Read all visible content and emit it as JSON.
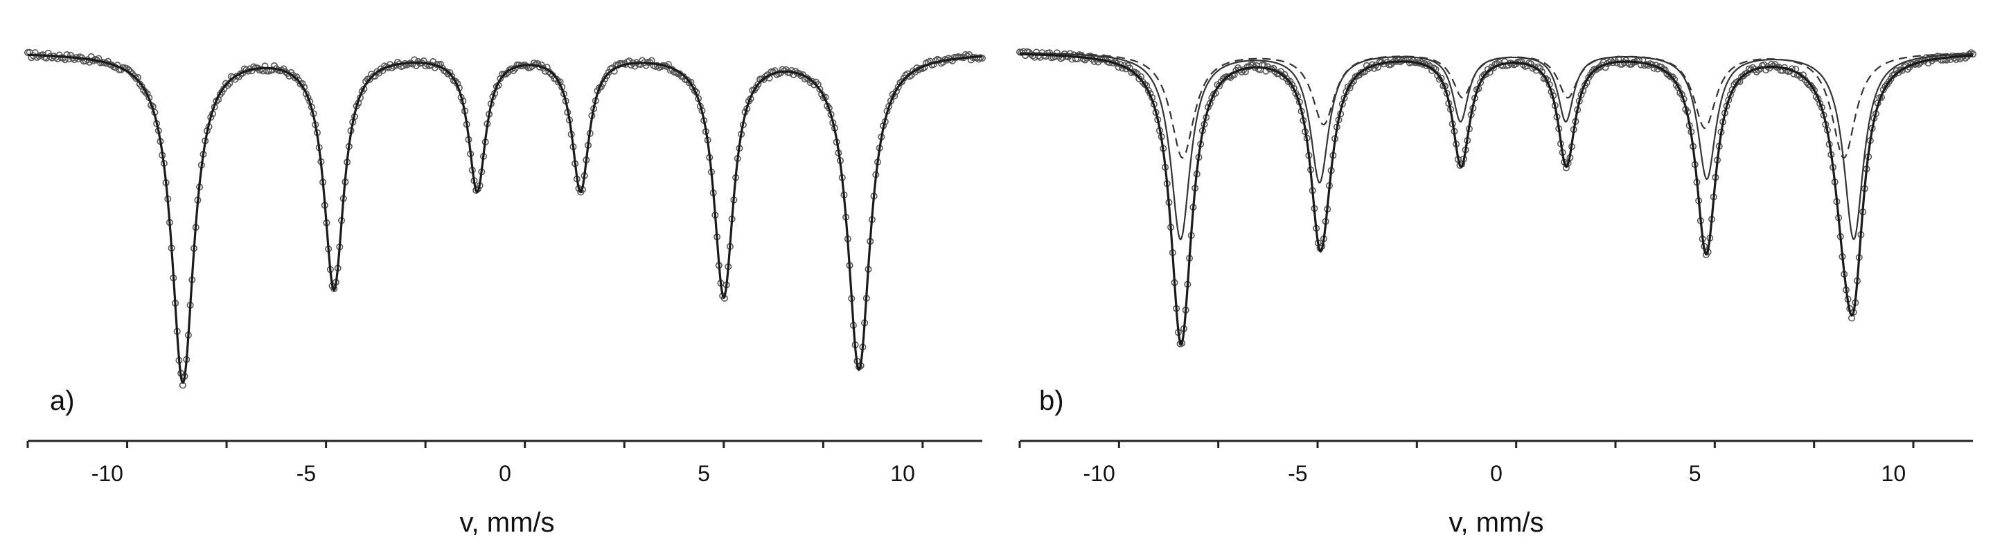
{
  "chart_data": [
    {
      "type": "line",
      "panel_label": "a)",
      "xlabel": "v, mm/s",
      "ylabel": "",
      "xlim": [
        -12,
        12
      ],
      "xticks": [
        -10,
        -5,
        0,
        5,
        10
      ],
      "grid": false,
      "baseline": 1.0,
      "ylim": [
        0.0,
        1.02
      ],
      "series": [
        {
          "style": "solid-thick",
          "lines": [
            {
              "position": -8.1,
              "depth": 0.97,
              "width": 0.34
            },
            {
              "position": -4.3,
              "depth": 0.69,
              "width": 0.3
            },
            {
              "position": -0.7,
              "depth": 0.4,
              "width": 0.26
            },
            {
              "position": 1.9,
              "depth": 0.4,
              "width": 0.26
            },
            {
              "position": 5.5,
              "depth": 0.71,
              "width": 0.3
            },
            {
              "position": 8.9,
              "depth": 0.93,
              "width": 0.34
            }
          ]
        }
      ],
      "points": "experimental data (open circles)"
    },
    {
      "type": "line",
      "panel_label": "b)",
      "xlabel": "v, mm/s",
      "ylabel": "",
      "xlim": [
        -12,
        12
      ],
      "xticks": [
        -10,
        -5,
        0,
        5,
        10
      ],
      "grid": false,
      "baseline": 1.0,
      "ylim": [
        0.0,
        1.02
      ],
      "series": [
        {
          "style": "solid-thin",
          "lines": [
            {
              "position": -7.95,
              "depth": 0.55,
              "width": 0.3
            },
            {
              "position": -4.45,
              "depth": 0.38,
              "width": 0.28
            },
            {
              "position": -0.9,
              "depth": 0.2,
              "width": 0.24
            },
            {
              "position": 1.75,
              "depth": 0.2,
              "width": 0.24
            },
            {
              "position": 5.3,
              "depth": 0.37,
              "width": 0.28
            },
            {
              "position": 9.0,
              "depth": 0.55,
              "width": 0.3
            }
          ]
        },
        {
          "style": "dashed",
          "lines": [
            {
              "position": -7.9,
              "depth": 0.31,
              "width": 0.36
            },
            {
              "position": -4.35,
              "depth": 0.21,
              "width": 0.34
            },
            {
              "position": -0.85,
              "depth": 0.13,
              "width": 0.3
            },
            {
              "position": 1.8,
              "depth": 0.13,
              "width": 0.3
            },
            {
              "position": 5.25,
              "depth": 0.22,
              "width": 0.34
            },
            {
              "position": 8.75,
              "depth": 0.31,
              "width": 0.36
            }
          ]
        }
      ],
      "points": "experimental data (open circles)"
    }
  ]
}
